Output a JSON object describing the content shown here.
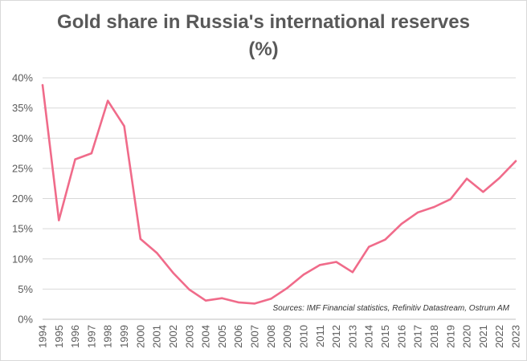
{
  "chart_data": {
    "type": "line",
    "title_line1": "Gold share in Russia's international reserves",
    "title_line2": "(%)",
    "xlabel": "",
    "ylabel": "",
    "ylim": [
      0,
      40
    ],
    "yticks": [
      0,
      5,
      10,
      15,
      20,
      25,
      30,
      35,
      40
    ],
    "ytick_labels": [
      "0%",
      "5%",
      "10%",
      "15%",
      "20%",
      "25%",
      "30%",
      "35%",
      "40%"
    ],
    "grid": true,
    "categories": [
      "1994",
      "1995",
      "1996",
      "1997",
      "1998",
      "1999",
      "2000",
      "2001",
      "2002",
      "2003",
      "2004",
      "2005",
      "2006",
      "2007",
      "2008",
      "2009",
      "2010",
      "2011",
      "2012",
      "2013",
      "2014",
      "2015",
      "2016",
      "2017",
      "2018",
      "2019",
      "2020",
      "2021",
      "2022",
      "2023"
    ],
    "series": [
      {
        "name": "Gold share",
        "color": "#f06b8a",
        "values": [
          38.8,
          16.4,
          26.5,
          27.5,
          36.2,
          32.0,
          13.3,
          11.0,
          7.7,
          4.9,
          3.1,
          3.5,
          2.8,
          2.6,
          3.4,
          5.2,
          7.4,
          9.0,
          9.5,
          7.8,
          12.0,
          13.2,
          15.8,
          17.7,
          18.6,
          19.9,
          23.3,
          21.1,
          23.4,
          26.2
        ]
      }
    ],
    "source_note": "Sources: IMF Financial statistics,  Refinitiv Datastream, Ostrum AM"
  }
}
